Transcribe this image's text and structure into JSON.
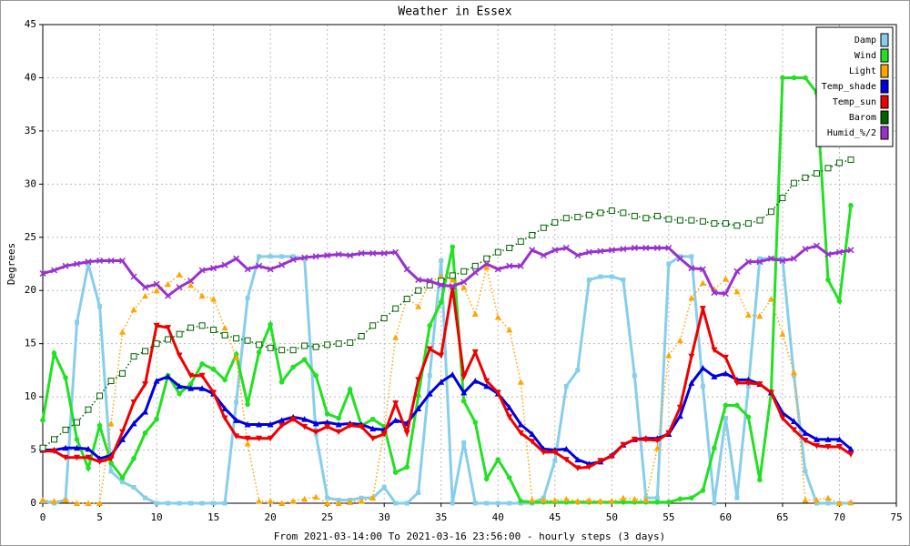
{
  "chart_data": {
    "type": "line",
    "title": "Weather in Essex",
    "y_label": "Degrees",
    "x_label": "From 2021-03-14:00 To 2021-03-16 23:56:00 - hourly steps (3 days)",
    "x": [
      0,
      1,
      2,
      3,
      4,
      5,
      6,
      7,
      8,
      9,
      10,
      11,
      12,
      13,
      14,
      15,
      16,
      17,
      18,
      19,
      20,
      21,
      22,
      23,
      24,
      25,
      26,
      27,
      28,
      29,
      30,
      31,
      32,
      33,
      34,
      35,
      36,
      37,
      38,
      39,
      40,
      41,
      42,
      43,
      44,
      45,
      46,
      47,
      48,
      49,
      50,
      51,
      52,
      53,
      54,
      55,
      56,
      57,
      58,
      59,
      60,
      61,
      62,
      63,
      64,
      65,
      66,
      67,
      68,
      69,
      70,
      71
    ],
    "xlim": [
      0,
      75
    ],
    "xticks": [
      0,
      5,
      10,
      15,
      20,
      25,
      30,
      35,
      40,
      45,
      50,
      55,
      60,
      65,
      70,
      75
    ],
    "ylim": [
      0,
      45
    ],
    "yticks": [
      0,
      5,
      10,
      15,
      20,
      25,
      30,
      35,
      40,
      45
    ],
    "grid": true,
    "legend": "upper right",
    "series": [
      {
        "name": "Damp",
        "color": "#87ceeb",
        "marker": "square",
        "dashed": false,
        "values": [
          0.2,
          0,
          0.3,
          17,
          22.5,
          18.5,
          3,
          2,
          1.5,
          0.5,
          0,
          0,
          0,
          0,
          0,
          0,
          0,
          9.5,
          19.3,
          23.2,
          23.2,
          23.2,
          23.2,
          23,
          6.5,
          0.5,
          0.3,
          0.3,
          0.5,
          0.5,
          1.5,
          0,
          0,
          1,
          12,
          22.8,
          0,
          5.7,
          0,
          0,
          0,
          0,
          0,
          0,
          0.5,
          4,
          11,
          12.5,
          21,
          21.3,
          21.3,
          21,
          12,
          0.5,
          0.5,
          22.5,
          23.2,
          23.2,
          11,
          0,
          8,
          0.5,
          11,
          23,
          23,
          23,
          12,
          3,
          0,
          0,
          0,
          0
        ]
      },
      {
        "name": "Wind",
        "color": "#22e022",
        "marker": "circle",
        "dashed": false,
        "values": [
          7.8,
          14.1,
          11.8,
          6,
          3.3,
          7.3,
          3.8,
          2.4,
          4.2,
          6.6,
          7.9,
          12,
          10.3,
          11.2,
          13.1,
          12.6,
          11.6,
          14,
          9.3,
          14.2,
          16.8,
          11.4,
          12.8,
          13.5,
          12,
          8.4,
          8,
          10.7,
          7.3,
          7.9,
          7.2,
          2.9,
          3.4,
          10.1,
          16.7,
          18.9,
          24.1,
          9.6,
          7.6,
          2.3,
          4.1,
          2.4,
          0.2,
          0.1,
          0.1,
          0.1,
          0.1,
          0.1,
          0.1,
          0.1,
          0.1,
          0.1,
          0.1,
          0.1,
          0.1,
          0.1,
          0.4,
          0.5,
          1.2,
          5.2,
          9.2,
          9.2,
          8.1,
          2.2,
          10.4,
          40,
          40,
          40,
          38.6,
          21,
          19,
          28
        ]
      },
      {
        "name": "Light",
        "color": "#ffa500",
        "marker": "triangle",
        "dashed": true,
        "values": [
          0.3,
          0.2,
          0.3,
          0,
          0,
          0,
          7.5,
          16.1,
          18.2,
          19.5,
          20,
          20.6,
          21.5,
          20.5,
          19.5,
          19.2,
          16.5,
          13.7,
          5.6,
          0.2,
          0.2,
          0,
          0.2,
          0.4,
          0.6,
          0,
          0,
          0.1,
          0.2,
          0.5,
          6.8,
          15.6,
          19.3,
          18.5,
          20.8,
          21.3,
          21,
          20.3,
          17.8,
          22.2,
          17.5,
          16.3,
          11.4,
          0.3,
          0.3,
          0.3,
          0.4,
          0.2,
          0.3,
          0.2,
          0.2,
          0.5,
          0.4,
          0.3,
          5.2,
          13.9,
          15.3,
          19.3,
          20.7,
          20.1,
          21.1,
          19.9,
          17.7,
          17.6,
          19.2,
          15.9,
          12.3,
          0.3,
          0.3,
          0.5,
          0,
          0.1
        ]
      },
      {
        "name": "Temp_shade",
        "color": "#0000dd",
        "marker": "triangle",
        "dashed": false,
        "values": [
          5,
          5,
          5.2,
          5.2,
          5.1,
          4.2,
          4.5,
          6,
          7.5,
          8.6,
          11.5,
          11.9,
          11,
          10.8,
          10.8,
          10.3,
          8.9,
          7.8,
          7.4,
          7.4,
          7.4,
          7.8,
          8.1,
          7.9,
          7.5,
          7.6,
          7.4,
          7.5,
          7.4,
          7,
          6.9,
          7.8,
          7.5,
          8.9,
          10.3,
          11.4,
          12.1,
          10.4,
          11.5,
          11,
          10.3,
          9,
          7.4,
          6.5,
          5.1,
          5,
          5.1,
          4.1,
          3.7,
          3.9,
          4.5,
          5.5,
          6,
          6.1,
          6.1,
          6.5,
          8.2,
          11.3,
          12.7,
          11.9,
          12.2,
          11.6,
          11.6,
          11.2,
          10.4,
          8.5,
          7.7,
          6.6,
          6,
          6,
          6,
          5.1
        ]
      },
      {
        "name": "Temp_sun",
        "color": "#ee0000",
        "marker": "triangle-down",
        "dashed": false,
        "values": [
          4.9,
          4.9,
          4.3,
          4.3,
          4.3,
          3.9,
          4.2,
          6.7,
          9.5,
          11.2,
          16.7,
          16.5,
          13.9,
          12,
          12,
          10.4,
          8,
          6.3,
          6.1,
          6.1,
          6.1,
          7.3,
          7.9,
          7.2,
          6.7,
          7.2,
          6.7,
          7.3,
          7.2,
          6.1,
          6.5,
          9.4,
          6.6,
          11.6,
          14.5,
          13.9,
          20.3,
          11.9,
          14.2,
          11.5,
          10.4,
          8.1,
          6.6,
          5.8,
          4.8,
          4.8,
          4.1,
          3.3,
          3.4,
          4,
          4.4,
          5.5,
          6,
          6,
          5.9,
          6.6,
          9,
          13.8,
          18.3,
          14.4,
          13.7,
          11.3,
          11.3,
          11.2,
          10.4,
          8,
          6.9,
          5.9,
          5.4,
          5.3,
          5.3,
          4.6
        ]
      },
      {
        "name": "Barom",
        "color": "#006400",
        "marker": "open-square",
        "dashed": true,
        "values": [
          5.2,
          6,
          6.9,
          7.6,
          8.8,
          10.1,
          11.5,
          12.2,
          13.8,
          14.3,
          15,
          15.4,
          15.9,
          16.5,
          16.7,
          16.3,
          15.8,
          15.5,
          15.3,
          14.9,
          14.6,
          14.4,
          14.4,
          14.8,
          14.7,
          14.9,
          15,
          15.1,
          15.7,
          16.7,
          17.4,
          18.3,
          19.2,
          20,
          20.5,
          20.9,
          21.4,
          21.8,
          22.3,
          23,
          23.6,
          24,
          24.6,
          25.2,
          25.9,
          26.4,
          26.8,
          26.9,
          27.1,
          27.3,
          27.5,
          27.3,
          27,
          26.8,
          27,
          26.7,
          26.6,
          26.6,
          26.5,
          26.3,
          26.3,
          26.1,
          26.3,
          26.6,
          27.4,
          28.7,
          30.1,
          30.6,
          31,
          31.5,
          32,
          32.3
        ]
      },
      {
        "name": "Humid_%/2",
        "color": "#9932cc",
        "marker": "cross",
        "dashed": false,
        "values": [
          21.6,
          21.9,
          22.3,
          22.5,
          22.7,
          22.8,
          22.8,
          22.8,
          21.3,
          20.3,
          20.6,
          19.5,
          20.3,
          20.9,
          21.9,
          22.1,
          22.4,
          23,
          22,
          22.3,
          22,
          22.4,
          22.9,
          23.1,
          23.2,
          23.3,
          23.4,
          23.3,
          23.5,
          23.5,
          23.5,
          23.6,
          22,
          21,
          20.9,
          20.5,
          20.4,
          20.8,
          21.7,
          22.5,
          22,
          22.3,
          22.3,
          23.8,
          23.3,
          23.8,
          24,
          23.3,
          23.6,
          23.7,
          23.8,
          23.9,
          24,
          24,
          24,
          24,
          23,
          22.1,
          22,
          19.8,
          19.7,
          21.8,
          22.7,
          22.7,
          23,
          22.8,
          23,
          23.9,
          24.2,
          23.4,
          23.6,
          23.8
        ]
      }
    ]
  }
}
